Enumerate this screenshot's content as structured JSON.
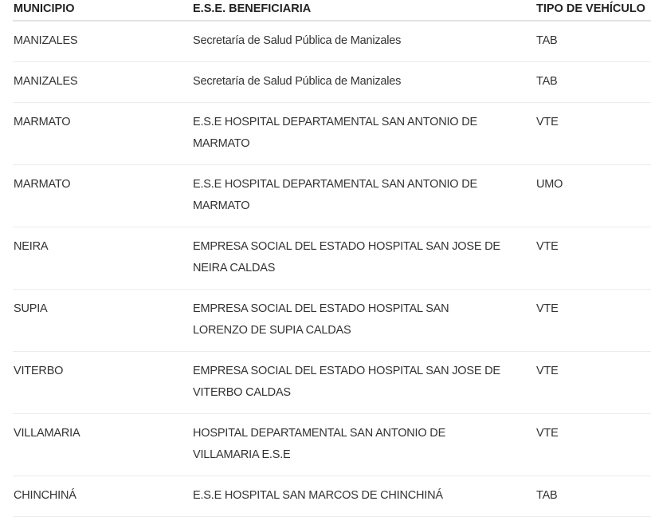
{
  "table": {
    "headers": [
      "MUNICIPIO",
      "E.S.E. BENEFICIARIA",
      "TIPO DE VEHÍCULO"
    ],
    "rows": [
      {
        "municipio": "MANIZALES",
        "beneficiaria": [
          "Secretaría de Salud Pública de Manizales"
        ],
        "tipo": "TAB"
      },
      {
        "municipio": "MANIZALES",
        "beneficiaria": [
          "Secretaría de Salud Pública de Manizales"
        ],
        "tipo": "TAB"
      },
      {
        "municipio": "MARMATO",
        "beneficiaria": [
          "E.S.E HOSPITAL DEPARTAMENTAL SAN ANTONIO DE",
          "MARMATO"
        ],
        "tipo": "VTE"
      },
      {
        "municipio": "MARMATO",
        "beneficiaria": [
          "E.S.E HOSPITAL DEPARTAMENTAL SAN ANTONIO DE",
          "MARMATO"
        ],
        "tipo": "UMO"
      },
      {
        "municipio": "NEIRA",
        "beneficiaria": [
          "EMPRESA SOCIAL DEL ESTADO HOSPITAL SAN JOSE DE",
          "NEIRA CALDAS"
        ],
        "tipo": "VTE"
      },
      {
        "municipio": "SUPIA",
        "beneficiaria": [
          "EMPRESA SOCIAL DEL ESTADO HOSPITAL SAN",
          "LORENZO DE SUPIA CALDAS"
        ],
        "tipo": "VTE"
      },
      {
        "municipio": "VITERBO",
        "beneficiaria": [
          "EMPRESA SOCIAL DEL ESTADO HOSPITAL SAN JOSE DE",
          "VITERBO CALDAS"
        ],
        "tipo": "VTE"
      },
      {
        "municipio": "VILLAMARIA",
        "beneficiaria": [
          "HOSPITAL DEPARTAMENTAL SAN ANTONIO DE",
          "VILLAMARIA E.S.E"
        ],
        "tipo": "VTE"
      },
      {
        "municipio": "CHINCHINÁ",
        "beneficiaria": [
          "E.S.E HOSPITAL SAN MARCOS DE CHINCHINÁ"
        ],
        "tipo": "TAB"
      }
    ]
  }
}
